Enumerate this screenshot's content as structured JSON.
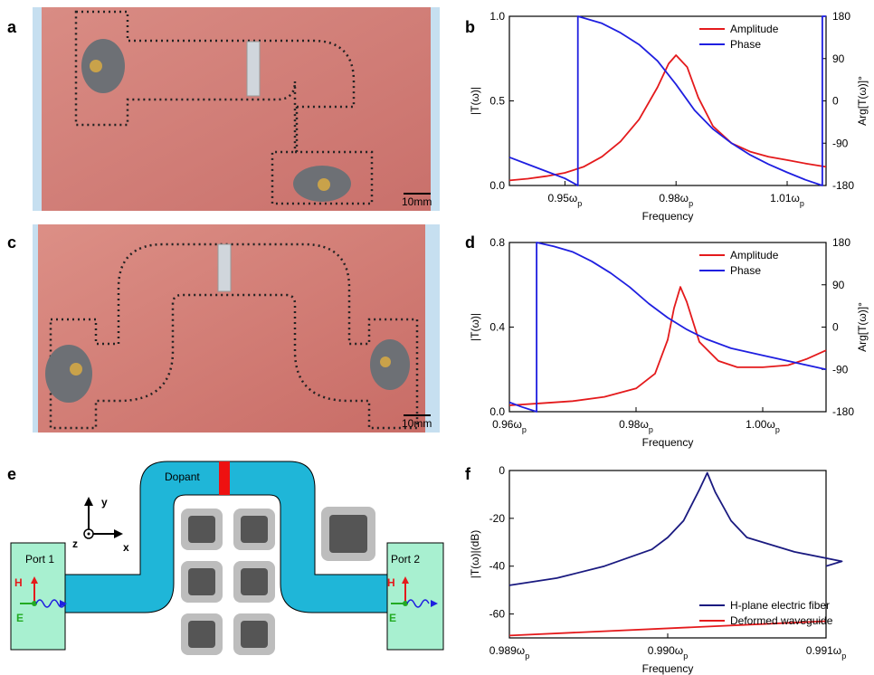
{
  "panels": {
    "a": "a",
    "b": "b",
    "c": "c",
    "d": "d",
    "e": "e",
    "f": "f"
  },
  "photos": {
    "a": {
      "scale_label": "10mm"
    },
    "c": {
      "scale_label": "10mm"
    }
  },
  "schematic": {
    "dopant_label": "Dopant",
    "port1_label": "Port 1",
    "port2_label": "Port 2",
    "axis_x": "x",
    "axis_y": "y",
    "axis_z": "z",
    "h_label": "H",
    "e_label": "E",
    "colors": {
      "waveguide": "#1fb6d8",
      "dopant": "#ee1111",
      "port": "#a8f0d0",
      "pillar": "#555555"
    }
  },
  "colors": {
    "amplitude": "#e41a1c",
    "phase": "#1f1fe0",
    "hplane": "#1a1a80",
    "deformed": "#e41a1c"
  },
  "chart_data": [
    {
      "id": "b",
      "type": "line",
      "xlabel": "Frequency",
      "ylabel": "|T(ω)|",
      "y2label": "Arg[T(ω)]°",
      "xlim": [
        0.935,
        1.0205
      ],
      "ylim": [
        0,
        1.0
      ],
      "y2lim": [
        -180,
        180
      ],
      "xticks": [
        0.95,
        0.98,
        1.01
      ],
      "xtick_labels": [
        "0.95ωp",
        "0.98ωp",
        "1.01ωp"
      ],
      "yticks": [
        0.0,
        0.5,
        1.0
      ],
      "ytick_labels": [
        "0.0",
        "0.5",
        "1.0"
      ],
      "y2ticks": [
        180,
        90,
        0,
        -90,
        -180
      ],
      "y2tick_labels": [
        "180",
        "90",
        "0",
        "-90",
        "-180"
      ],
      "legend_position": "top-right",
      "series": [
        {
          "name": "Amplitude",
          "axis": "left",
          "x": [
            0.935,
            0.94,
            0.945,
            0.95,
            0.955,
            0.96,
            0.965,
            0.97,
            0.975,
            0.978,
            0.98,
            0.983,
            0.986,
            0.99,
            0.995,
            1.0,
            1.005,
            1.01,
            1.015,
            1.0205
          ],
          "y": [
            0.03,
            0.04,
            0.055,
            0.075,
            0.11,
            0.17,
            0.26,
            0.39,
            0.58,
            0.72,
            0.77,
            0.7,
            0.52,
            0.35,
            0.25,
            0.2,
            0.17,
            0.15,
            0.13,
            0.11
          ]
        },
        {
          "name": "Phase",
          "axis": "right",
          "x": [
            0.935,
            0.94,
            0.945,
            0.95,
            0.9535,
            0.9535,
            0.96,
            0.965,
            0.97,
            0.975,
            0.98,
            0.985,
            0.99,
            0.995,
            1.0,
            1.005,
            1.01,
            1.015,
            1.0195,
            1.0195,
            1.0205
          ],
          "y": [
            -120,
            -135,
            -150,
            -165,
            -180,
            180,
            165,
            145,
            120,
            85,
            35,
            -20,
            -60,
            -90,
            -115,
            -135,
            -152,
            -168,
            -180,
            180,
            180
          ]
        }
      ]
    },
    {
      "id": "d",
      "type": "line",
      "xlabel": "Frequency",
      "ylabel": "|T(ω)|",
      "y2label": "Arg[T(ω)]°",
      "xlim": [
        0.96,
        1.01
      ],
      "ylim": [
        0,
        0.8
      ],
      "y2lim": [
        -180,
        180
      ],
      "xticks": [
        0.96,
        0.98,
        1.0
      ],
      "xtick_labels": [
        "0.96ωp",
        "0.98ωp",
        "1.00ωp"
      ],
      "yticks": [
        0.0,
        0.4,
        0.8
      ],
      "ytick_labels": [
        "0.0",
        "0.4",
        "0.8"
      ],
      "y2ticks": [
        180,
        90,
        0,
        -90,
        -180
      ],
      "y2tick_labels": [
        "180",
        "90",
        "0",
        "-90",
        "-180"
      ],
      "legend_position": "top-right",
      "series": [
        {
          "name": "Amplitude",
          "axis": "left",
          "x": [
            0.96,
            0.965,
            0.97,
            0.975,
            0.98,
            0.983,
            0.985,
            0.986,
            0.987,
            0.988,
            0.99,
            0.993,
            0.996,
            1.0,
            1.004,
            1.007,
            1.01
          ],
          "y": [
            0.03,
            0.04,
            0.05,
            0.07,
            0.11,
            0.18,
            0.34,
            0.49,
            0.59,
            0.52,
            0.33,
            0.24,
            0.21,
            0.21,
            0.22,
            0.25,
            0.29
          ]
        },
        {
          "name": "Phase",
          "axis": "right",
          "x": [
            0.96,
            0.962,
            0.9643,
            0.9643,
            0.967,
            0.97,
            0.973,
            0.976,
            0.979,
            0.982,
            0.985,
            0.988,
            0.991,
            0.995,
            1.0,
            1.005,
            1.01
          ],
          "y": [
            -160,
            -170,
            -180,
            180,
            172,
            160,
            140,
            115,
            85,
            50,
            20,
            -5,
            -25,
            -45,
            -60,
            -75,
            -90
          ]
        }
      ]
    },
    {
      "id": "f",
      "type": "line",
      "xlabel": "Frequency",
      "ylabel": "|T(ω)|(dB)",
      "xlim": [
        0.989,
        0.991
      ],
      "ylim": [
        -70,
        0
      ],
      "xticks": [
        0.989,
        0.99,
        0.991
      ],
      "xtick_labels": [
        "0.989ωp",
        "0.990ωp",
        "0.991ωp"
      ],
      "yticks": [
        0,
        -20,
        -40,
        -60
      ],
      "ytick_labels": [
        "0",
        "-20",
        "-40",
        "-60"
      ],
      "legend_position": "bottom-right",
      "series": [
        {
          "name": "H-plane electric fiber",
          "x": [
            0.989,
            0.9893,
            0.9896,
            0.9899,
            0.99,
            0.9901,
            0.9902,
            0.99025,
            0.9903,
            0.9904,
            0.9905,
            0.9908,
            0.9911,
            0.991
          ],
          "y": [
            -48,
            -45,
            -40,
            -33,
            -28,
            -21,
            -8,
            -1,
            -9,
            -21,
            -28,
            -34,
            -38,
            -40
          ]
        },
        {
          "name": "Deformed waveguide",
          "x": [
            0.989,
            0.991
          ],
          "y": [
            -69,
            -63
          ]
        }
      ]
    }
  ]
}
